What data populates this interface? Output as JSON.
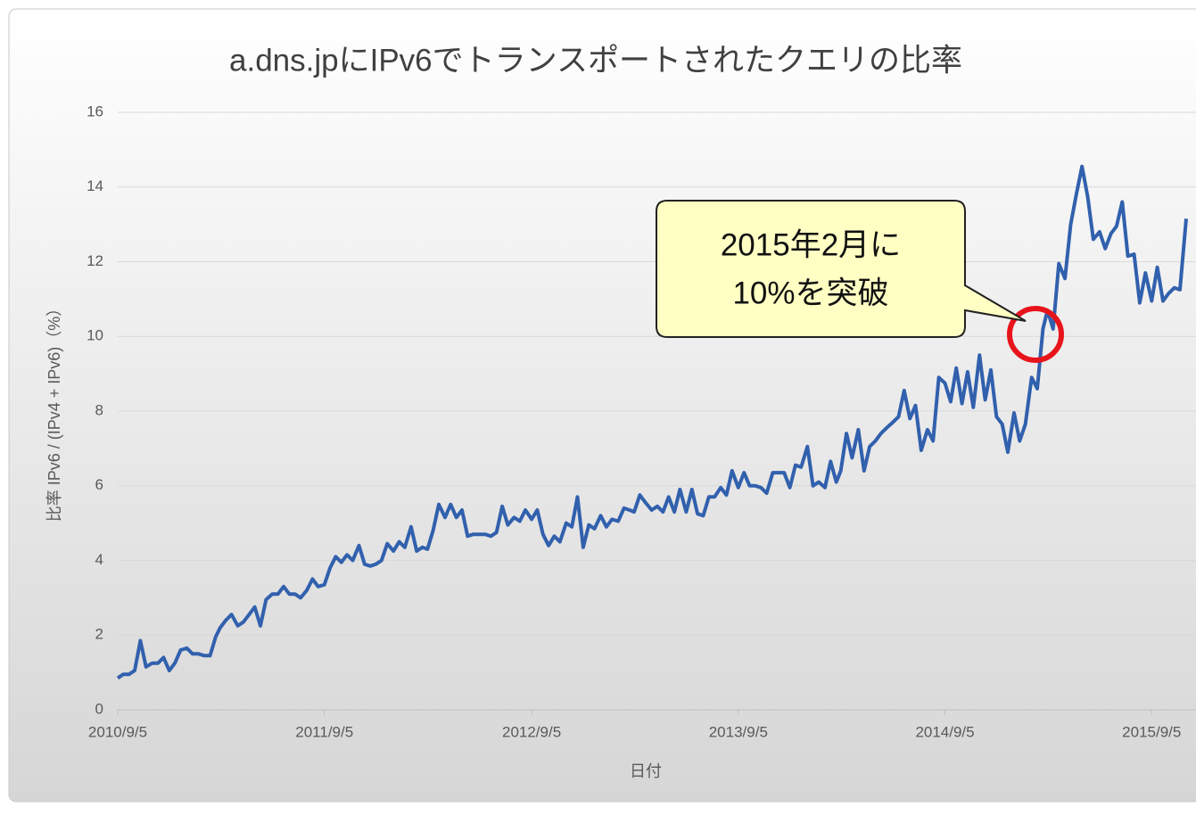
{
  "chart_data": {
    "type": "line",
    "title": "a.dns.jpにIPv6でトランスポートされたクエリの比率",
    "x_label": "日付",
    "y_label": "比率 IPv6 / (IPv4 + IPv6)（%）",
    "annotation": [
      "2015年2月に",
      "10%を突破"
    ],
    "xlim": [
      "2010/9/5",
      "2015/11/5"
    ],
    "xticks": [
      "2010/9/5",
      "2011/9/5",
      "2012/9/5",
      "2013/9/5",
      "2014/9/5",
      "2015/9/5"
    ],
    "ylim": [
      0,
      16
    ],
    "yticks": [
      0,
      2,
      4,
      6,
      8,
      10,
      12,
      14,
      16
    ],
    "grid": true,
    "x": [
      "2010/9/5",
      "2010/9/15",
      "2010/9/25",
      "2010/10/5",
      "2010/10/15",
      "2010/10/25",
      "2010/11/5",
      "2010/11/15",
      "2010/11/25",
      "2010/12/5",
      "2010/12/15",
      "2010/12/25",
      "2011/1/5",
      "2011/1/15",
      "2011/1/25",
      "2011/2/5",
      "2011/2/15",
      "2011/2/25",
      "2011/3/5",
      "2011/3/15",
      "2011/3/25",
      "2011/4/5",
      "2011/4/15",
      "2011/4/25",
      "2011/5/5",
      "2011/5/15",
      "2011/5/25",
      "2011/6/5",
      "2011/6/15",
      "2011/6/25",
      "2011/7/5",
      "2011/7/15",
      "2011/7/25",
      "2011/8/5",
      "2011/8/15",
      "2011/8/25",
      "2011/9/5",
      "2011/9/15",
      "2011/9/25",
      "2011/10/5",
      "2011/10/15",
      "2011/10/25",
      "2011/11/5",
      "2011/11/15",
      "2011/11/25",
      "2011/12/5",
      "2011/12/15",
      "2011/12/25",
      "2012/1/5",
      "2012/1/15",
      "2012/1/25",
      "2012/2/5",
      "2012/2/15",
      "2012/2/25",
      "2012/3/5",
      "2012/3/15",
      "2012/3/25",
      "2012/4/5",
      "2012/4/15",
      "2012/4/25",
      "2012/5/5",
      "2012/5/15",
      "2012/5/25",
      "2012/6/5",
      "2012/6/15",
      "2012/6/25",
      "2012/7/5",
      "2012/7/15",
      "2012/7/25",
      "2012/8/5",
      "2012/8/15",
      "2012/8/25",
      "2012/9/5",
      "2012/9/15",
      "2012/9/25",
      "2012/10/5",
      "2012/10/15",
      "2012/10/25",
      "2012/11/5",
      "2012/11/15",
      "2012/11/25",
      "2012/12/5",
      "2012/12/15",
      "2012/12/25",
      "2013/1/5",
      "2013/1/15",
      "2013/1/25",
      "2013/2/5",
      "2013/2/15",
      "2013/2/25",
      "2013/3/5",
      "2013/3/15",
      "2013/3/25",
      "2013/4/5",
      "2013/4/15",
      "2013/4/25",
      "2013/5/5",
      "2013/5/15",
      "2013/5/25",
      "2013/6/5",
      "2013/6/15",
      "2013/6/25",
      "2013/7/5",
      "2013/7/15",
      "2013/7/25",
      "2013/8/5",
      "2013/8/15",
      "2013/8/25",
      "2013/9/5",
      "2013/9/15",
      "2013/9/25",
      "2013/10/5",
      "2013/10/15",
      "2013/10/25",
      "2013/11/5",
      "2013/11/15",
      "2013/11/25",
      "2013/12/5",
      "2013/12/15",
      "2013/12/25",
      "2014/1/5",
      "2014/1/15",
      "2014/1/25",
      "2014/2/5",
      "2014/2/15",
      "2014/2/25",
      "2014/3/5",
      "2014/3/15",
      "2014/3/25",
      "2014/4/5",
      "2014/4/15",
      "2014/4/25",
      "2014/5/5",
      "2014/5/15",
      "2014/5/25",
      "2014/6/5",
      "2014/6/15",
      "2014/6/25",
      "2014/7/5",
      "2014/7/15",
      "2014/7/25",
      "2014/8/5",
      "2014/8/15",
      "2014/8/25",
      "2014/9/5",
      "2014/9/15",
      "2014/9/25",
      "2014/10/5",
      "2014/10/15",
      "2014/10/25",
      "2014/11/5",
      "2014/11/15",
      "2014/11/25",
      "2014/12/5",
      "2014/12/15",
      "2014/12/25",
      "2015/1/5",
      "2015/1/15",
      "2015/1/25",
      "2015/2/5",
      "2015/2/15",
      "2015/2/25",
      "2015/3/5",
      "2015/3/15",
      "2015/3/25",
      "2015/4/5",
      "2015/4/15",
      "2015/4/25",
      "2015/5/5",
      "2015/5/15",
      "2015/5/25",
      "2015/6/5",
      "2015/6/15",
      "2015/6/25",
      "2015/7/5",
      "2015/7/15",
      "2015/7/25",
      "2015/8/5",
      "2015/8/15",
      "2015/8/25",
      "2015/9/5",
      "2015/9/15",
      "2015/9/25",
      "2015/10/5",
      "2015/10/15",
      "2015/10/25",
      "2015/11/5"
    ],
    "series": [
      {
        "color": "#3160ad",
        "values": [
          0.85,
          0.95,
          0.95,
          1.05,
          1.85,
          1.15,
          1.25,
          1.25,
          1.4,
          1.05,
          1.25,
          1.6,
          1.65,
          1.5,
          1.5,
          1.45,
          1.45,
          1.95,
          2.2,
          2.4,
          2.55,
          2.25,
          2.35,
          2.55,
          2.75,
          2.25,
          2.95,
          3.1,
          3.1,
          3.3,
          3.1,
          3.1,
          3.0,
          3.2,
          3.5,
          3.3,
          3.35,
          3.8,
          4.1,
          3.95,
          4.15,
          4.0,
          4.4,
          3.9,
          3.85,
          3.9,
          4.0,
          4.45,
          4.25,
          4.5,
          4.35,
          4.9,
          4.25,
          4.35,
          4.3,
          4.8,
          5.5,
          5.15,
          5.5,
          5.15,
          5.35,
          4.65,
          4.7,
          4.7,
          4.7,
          4.65,
          4.75,
          5.45,
          4.95,
          5.15,
          5.05,
          5.35,
          5.1,
          5.35,
          4.7,
          4.4,
          4.65,
          4.5,
          5.0,
          4.9,
          5.7,
          4.35,
          4.95,
          4.85,
          5.2,
          4.9,
          5.1,
          5.05,
          5.4,
          5.35,
          5.3,
          5.75,
          5.55,
          5.35,
          5.45,
          5.3,
          5.7,
          5.3,
          5.9,
          5.3,
          5.9,
          5.25,
          5.2,
          5.7,
          5.7,
          5.95,
          5.75,
          6.4,
          5.95,
          6.35,
          6.0,
          6.0,
          5.95,
          5.8,
          6.35,
          6.35,
          6.35,
          5.95,
          6.55,
          6.5,
          7.05,
          6.0,
          6.1,
          5.95,
          6.65,
          6.1,
          6.4,
          7.4,
          6.75,
          7.5,
          6.4,
          7.05,
          7.2,
          7.4,
          7.55,
          7.7,
          7.85,
          8.55,
          7.8,
          8.15,
          6.95,
          7.5,
          7.2,
          8.9,
          8.75,
          8.25,
          9.15,
          8.2,
          9.05,
          8.1,
          9.5,
          8.3,
          9.1,
          7.85,
          7.65,
          6.9,
          7.95,
          7.2,
          7.65,
          8.9,
          8.6,
          10.2,
          10.7,
          10.2,
          11.95,
          11.55,
          13.0,
          13.8,
          14.55,
          13.75,
          12.6,
          12.8,
          12.35,
          12.75,
          12.95,
          13.6,
          12.15,
          12.2,
          10.9,
          11.7,
          10.95,
          11.85,
          10.95,
          11.15,
          11.3,
          11.25,
          13.15
        ]
      }
    ]
  }
}
